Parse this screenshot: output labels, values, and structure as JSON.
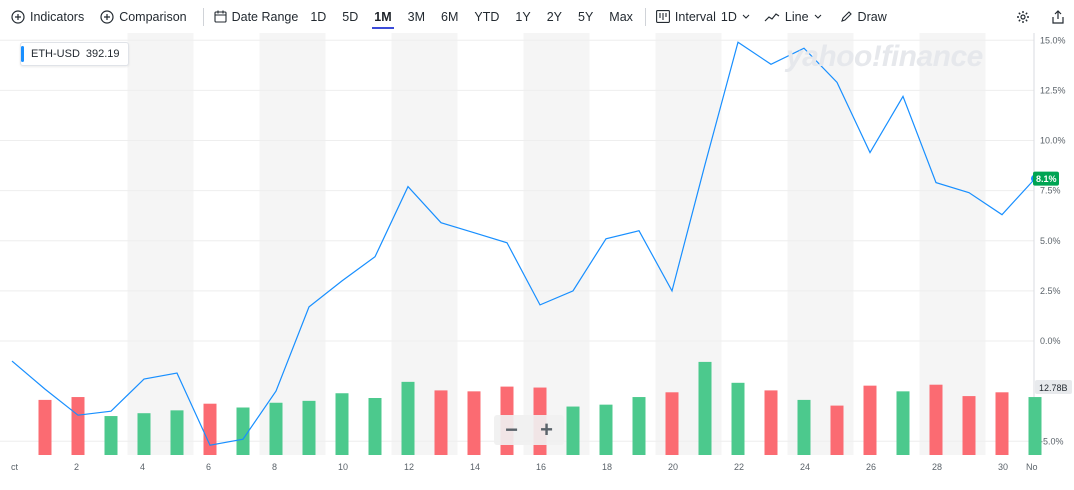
{
  "toolbar": {
    "indicators_label": "Indicators",
    "comparison_label": "Comparison",
    "date_range_label": "Date Range",
    "ranges": [
      "1D",
      "5D",
      "1M",
      "3M",
      "6M",
      "YTD",
      "1Y",
      "2Y",
      "5Y",
      "Max"
    ],
    "active_range": "1M",
    "interval_label": "Interval",
    "interval_value": "1D",
    "line_label": "Line",
    "draw_label": "Draw"
  },
  "legend": {
    "symbol": "ETH-USD",
    "value": "392.19"
  },
  "watermark": "yahoo!finance",
  "zoom": {
    "minus": "−",
    "plus": "+"
  },
  "colors": {
    "line": "#188fff",
    "up_bar": "#4cc98d",
    "down_bar": "#fb6b72",
    "last_badge": "#00a453",
    "band": "#f5f5f5",
    "grid": "#eeeeee",
    "axis_text": "#5b636a"
  },
  "chart_data": {
    "type": "line",
    "title": "",
    "xlabel": "",
    "ylabel": "",
    "y_axis_side": "right",
    "y_unit": "%",
    "ylim": [
      -5.5,
      15.1
    ],
    "y_ticks": [
      "15.0%",
      "12.5%",
      "10.0%",
      "7.5%",
      "5.0%",
      "2.5%",
      "0.0%",
      "-5.0%"
    ],
    "x_tick_labels": [
      "ct",
      "2",
      "4",
      "6",
      "8",
      "10",
      "12",
      "14",
      "16",
      "18",
      "20",
      "22",
      "24",
      "26",
      "28",
      "30",
      "No"
    ],
    "x_labels_days": [
      0,
      2,
      4,
      6,
      8,
      10,
      12,
      14,
      16,
      18,
      20,
      22,
      24,
      26,
      28,
      30,
      32
    ],
    "series": [
      {
        "values_x_day": [
          0,
          1,
          2,
          3,
          4,
          5,
          6,
          7,
          8,
          9,
          10,
          11,
          12,
          13,
          14,
          15,
          16,
          17,
          18,
          19,
          20,
          21,
          22,
          23,
          24,
          25,
          26,
          27,
          28,
          29,
          30,
          31
        ],
        "values_pct": [
          -1.0,
          -2.4,
          -3.7,
          -3.5,
          -1.9,
          -1.6,
          -5.2,
          -4.9,
          -2.5,
          1.7,
          3.0,
          4.2,
          7.7,
          5.9,
          5.4,
          4.9,
          1.8,
          2.5,
          5.1,
          5.5,
          2.5,
          8.8,
          14.9,
          13.8,
          14.6,
          12.9,
          9.4,
          12.2,
          7.9,
          7.4,
          6.3,
          8.1
        ]
      }
    ],
    "last_value_label": "8.1%",
    "volume": {
      "label": "12.78B",
      "days": [
        1,
        2,
        3,
        4,
        5,
        6,
        7,
        8,
        9,
        10,
        11,
        12,
        13,
        14,
        15,
        16,
        17,
        18,
        19,
        20,
        21,
        22,
        23,
        24,
        25,
        26,
        27,
        28,
        29,
        30,
        31
      ],
      "relative": [
        0.58,
        0.61,
        0.41,
        0.44,
        0.47,
        0.54,
        0.5,
        0.55,
        0.57,
        0.65,
        0.6,
        0.77,
        0.68,
        0.67,
        0.72,
        0.71,
        0.51,
        0.53,
        0.61,
        0.66,
        0.98,
        0.76,
        0.68,
        0.58,
        0.52,
        0.73,
        0.67,
        0.74,
        0.62,
        0.66,
        0.61
      ],
      "direction": [
        "down",
        "down",
        "up",
        "up",
        "up",
        "down",
        "up",
        "up",
        "up",
        "up",
        "up",
        "up",
        "down",
        "down",
        "down",
        "down",
        "up",
        "up",
        "up",
        "down",
        "up",
        "up",
        "down",
        "up",
        "down",
        "down",
        "up",
        "down",
        "down",
        "down",
        "up"
      ]
    }
  }
}
